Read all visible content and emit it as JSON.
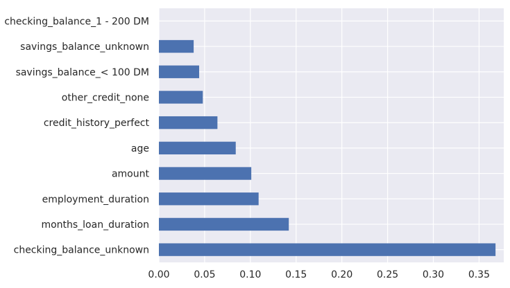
{
  "chart_data": {
    "type": "bar",
    "orientation": "horizontal",
    "title": "",
    "xlabel": "",
    "ylabel": "",
    "xlim": [
      0,
      0.377
    ],
    "xticks": [
      0.0,
      0.05,
      0.1,
      0.15,
      0.2,
      0.25,
      0.3,
      0.35
    ],
    "xtick_labels": [
      "0.00",
      "0.05",
      "0.10",
      "0.15",
      "0.20",
      "0.25",
      "0.30",
      "0.35"
    ],
    "grid": true,
    "bar_color": "#4C72B0",
    "background_color": "#EAEAF2",
    "categories": [
      "checking_balance_unknown",
      "months_loan_duration",
      "employment_duration",
      "amount",
      "age",
      "credit_history_perfect",
      "other_credit_none",
      "savings_balance_< 100 DM",
      "savings_balance_unknown",
      "checking_balance_1 - 200 DM"
    ],
    "values": [
      0.368,
      0.142,
      0.109,
      0.101,
      0.084,
      0.064,
      0.048,
      0.044,
      0.038,
      0.0
    ]
  }
}
